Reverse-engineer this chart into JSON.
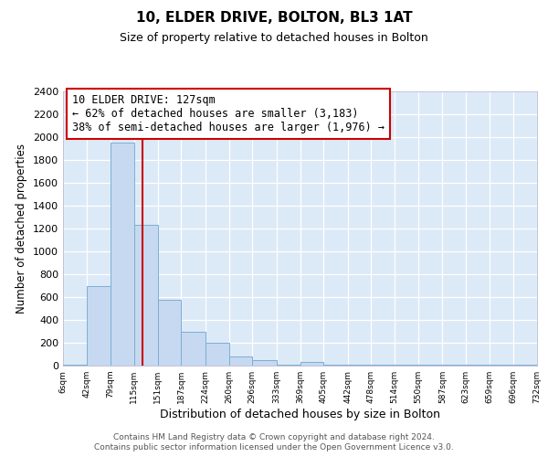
{
  "title1": "10, ELDER DRIVE, BOLTON, BL3 1AT",
  "title2": "Size of property relative to detached houses in Bolton",
  "xlabel": "Distribution of detached houses by size in Bolton",
  "ylabel": "Number of detached properties",
  "bin_edges": [
    6,
    42,
    79,
    115,
    151,
    187,
    224,
    260,
    296,
    333,
    369,
    405,
    442,
    478,
    514,
    550,
    587,
    623,
    659,
    696,
    732
  ],
  "bar_heights": [
    10,
    700,
    1950,
    1230,
    575,
    300,
    200,
    80,
    45,
    10,
    35,
    10,
    5,
    5,
    5,
    5,
    5,
    5,
    5,
    5
  ],
  "bar_color": "#c6d9f0",
  "bar_edge_color": "#7bafd4",
  "vline_color": "#cc0000",
  "vline_x": 127,
  "annotation_line1": "10 ELDER DRIVE: 127sqm",
  "annotation_line2": "← 62% of detached houses are smaller (3,183)",
  "annotation_line3": "38% of semi-detached houses are larger (1,976) →",
  "box_edge_color": "#cc0000",
  "ylim": [
    0,
    2400
  ],
  "yticks": [
    0,
    200,
    400,
    600,
    800,
    1000,
    1200,
    1400,
    1600,
    1800,
    2000,
    2200,
    2400
  ],
  "plot_bg_color": "#dce9f7",
  "fig_bg_color": "#ffffff",
  "grid_color": "#ffffff",
  "footer1": "Contains HM Land Registry data © Crown copyright and database right 2024.",
  "footer2": "Contains public sector information licensed under the Open Government Licence v3.0."
}
